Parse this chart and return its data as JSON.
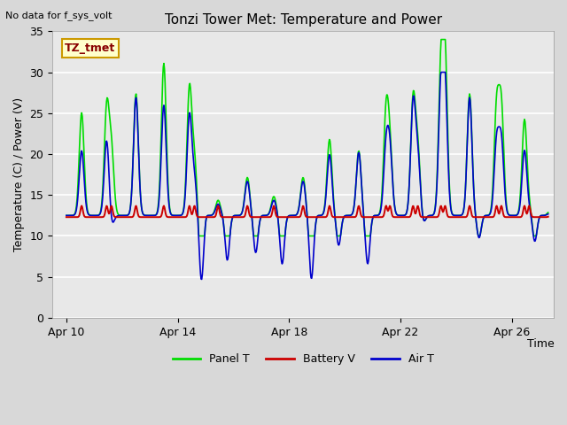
{
  "title": "Tonzi Tower Met: Temperature and Power",
  "top_left_note": "No data for f_sys_volt",
  "ylabel": "Temperature (C) / Power (V)",
  "xlabel": "Time",
  "xlim_days": [
    9.5,
    27.5
  ],
  "ylim": [
    0,
    35
  ],
  "yticks": [
    0,
    5,
    10,
    15,
    20,
    25,
    30,
    35
  ],
  "xtick_labels": [
    "Apr 10",
    "Apr 14",
    "Apr 18",
    "Apr 22",
    "Apr 26"
  ],
  "xtick_positions": [
    10,
    14,
    18,
    22,
    26
  ],
  "tztmet_label": "TZ_tmet",
  "legend_box_facecolor": "#ffffcc",
  "legend_box_edgecolor": "#cc9900",
  "fig_facecolor": "#d8d8d8",
  "plot_facecolor": "#e8e8e8",
  "grid_color": "#ffffff",
  "panel_T_color": "#00dd00",
  "battery_V_color": "#cc0000",
  "air_T_color": "#0000cc",
  "panel_T_lw": 1.2,
  "battery_V_lw": 1.4,
  "air_T_lw": 1.2,
  "title_fontsize": 11,
  "label_fontsize": 9,
  "tick_fontsize": 9
}
